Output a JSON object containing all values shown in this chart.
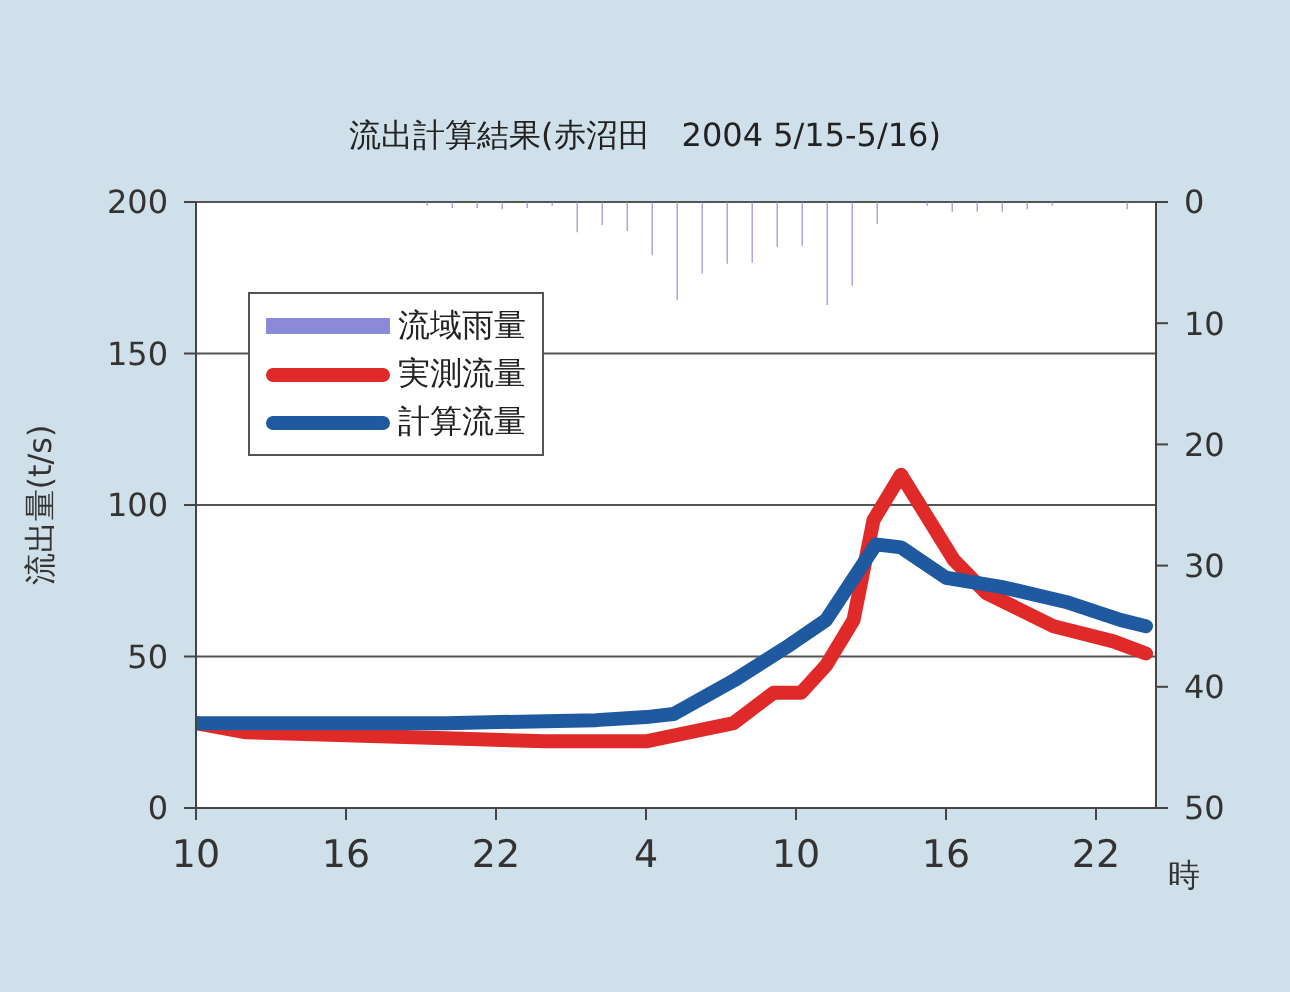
{
  "chart_data": {
    "type": "line",
    "title": "流出計算結果(赤沼田　2004 5/15-5/16)",
    "xlabel": "時",
    "ylabel": "流出量(t/s)",
    "xlim": [
      "2004-05-15T10:00",
      "2004-05-17T00:24"
    ],
    "xticks": [
      {
        "value": "2004-05-15T10:00",
        "label": "10"
      },
      {
        "value": "2004-05-15T16:00",
        "label": "16"
      },
      {
        "value": "2004-05-15T22:00",
        "label": "22"
      },
      {
        "value": "2004-05-16T04:00",
        "label": "4"
      },
      {
        "value": "2004-05-16T10:00",
        "label": "10"
      },
      {
        "value": "2004-05-16T16:00",
        "label": "16"
      },
      {
        "value": "2004-05-16T22:00",
        "label": "22"
      }
    ],
    "ylim": [
      0,
      200
    ],
    "yticks": [
      0,
      50,
      100,
      150,
      200
    ],
    "y2lim": [
      50,
      0
    ],
    "y2ticks": [
      0,
      10,
      20,
      30,
      40,
      50
    ],
    "grid": "y",
    "legend": "top left",
    "marker": "none",
    "line_style": "solid",
    "series": [
      {
        "name": "流域雨量",
        "type": "bar",
        "axis": "y2",
        "color": "#8a8ad8",
        "x": [
          "2004-05-15T19:15",
          "2004-05-15T20:15",
          "2004-05-15T21:15",
          "2004-05-15T22:15",
          "2004-05-15T23:15",
          "2004-05-16T00:15",
          "2004-05-16T01:15",
          "2004-05-16T02:15",
          "2004-05-16T03:15",
          "2004-05-16T04:15",
          "2004-05-16T05:15",
          "2004-05-16T06:15",
          "2004-05-16T07:15",
          "2004-05-16T08:15",
          "2004-05-16T09:15",
          "2004-05-16T10:15",
          "2004-05-16T11:15",
          "2004-05-16T12:15",
          "2004-05-16T13:15",
          "2004-05-16T15:15",
          "2004-05-16T16:15",
          "2004-05-16T17:15",
          "2004-05-16T18:15",
          "2004-05-16T19:15",
          "2004-05-16T20:15",
          "2004-05-16T23:15"
        ],
        "values": [
          0.3,
          0.5,
          0.5,
          0.6,
          0.5,
          0.3,
          2.5,
          1.9,
          2.4,
          4.4,
          8.1,
          5.9,
          5.1,
          5.0,
          3.7,
          3.6,
          8.5,
          6.9,
          1.8,
          0.3,
          0.8,
          0.8,
          0.8,
          0.6,
          0.3,
          0.6
        ]
      },
      {
        "name": "実測流量",
        "color": "#e02a2a",
        "x": [
          "2004-05-15T10:00",
          "2004-05-15T12:00",
          "2004-05-15T16:00",
          "2004-05-15T20:00",
          "2004-05-16T00:00",
          "2004-05-16T02:00",
          "2004-05-16T04:00",
          "2004-05-16T07:30",
          "2004-05-16T09:06",
          "2004-05-16T10:12",
          "2004-05-16T11:12",
          "2004-05-16T12:18",
          "2004-05-16T13:06",
          "2004-05-16T14:12",
          "2004-05-16T16:18",
          "2004-05-16T17:36",
          "2004-05-16T20:18",
          "2004-05-16T22:42",
          "2004-05-17T00:00"
        ],
        "values": [
          28,
          25,
          24,
          23,
          22,
          22,
          22,
          28,
          38,
          38,
          47,
          62,
          95,
          110,
          82,
          71,
          60,
          55,
          51
        ]
      },
      {
        "name": "計算流量",
        "color": "#1f5aa0",
        "x": [
          "2004-05-15T10:00",
          "2004-05-15T20:00",
          "2004-05-16T02:00",
          "2004-05-16T04:00",
          "2004-05-16T05:06",
          "2004-05-16T07:30",
          "2004-05-16T09:36",
          "2004-05-16T11:12",
          "2004-05-16T13:12",
          "2004-05-16T14:12",
          "2004-05-16T16:00",
          "2004-05-16T18:12",
          "2004-05-16T20:48",
          "2004-05-16T23:00",
          "2004-05-17T00:00"
        ],
        "values": [
          28,
          28,
          29,
          30,
          31,
          42,
          53,
          62,
          87,
          86,
          76,
          73,
          68,
          62,
          60
        ]
      }
    ]
  }
}
